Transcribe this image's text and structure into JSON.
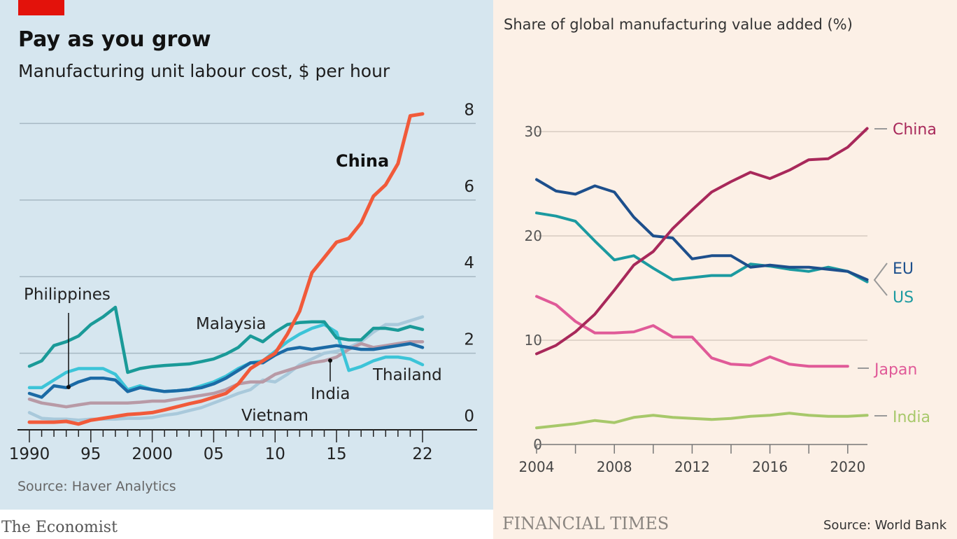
{
  "chart_data": [
    {
      "type": "line",
      "publisher": "The Economist",
      "title": "Pay as you grow",
      "subtitle": "Manufacturing unit labour cost, $ per hour",
      "source": "Source: Haver Analytics",
      "xlabel": "",
      "ylabel": "",
      "xlim": [
        1990,
        2022
      ],
      "ylim": [
        0,
        8
      ],
      "y_ticks": [
        "0",
        "2",
        "4",
        "6",
        "8"
      ],
      "x_tick_labels": [
        {
          "year": 1990,
          "label": "1990"
        },
        {
          "year": 1995,
          "label": "95"
        },
        {
          "year": 2000,
          "label": "2000"
        },
        {
          "year": 2005,
          "label": "05"
        },
        {
          "year": 2010,
          "label": "10"
        },
        {
          "year": 2015,
          "label": "15"
        },
        {
          "year": 2022,
          "label": "22"
        }
      ],
      "grid": true,
      "background": "#d6e6ef",
      "accent": "#e3120b",
      "x": [
        1990,
        1991,
        1992,
        1993,
        1994,
        1995,
        1996,
        1997,
        1998,
        1999,
        2000,
        2001,
        2002,
        2003,
        2004,
        2005,
        2006,
        2007,
        2008,
        2009,
        2010,
        2011,
        2012,
        2013,
        2014,
        2015,
        2016,
        2017,
        2018,
        2019,
        2020,
        2021,
        2022
      ],
      "series": [
        {
          "name": "Vietnam",
          "color": "#a9c9db",
          "values": [
            0.45,
            0.3,
            0.28,
            0.28,
            0.25,
            0.28,
            0.28,
            0.28,
            0.3,
            0.3,
            0.32,
            0.38,
            0.42,
            0.5,
            0.58,
            0.7,
            0.82,
            0.95,
            1.05,
            1.3,
            1.25,
            1.45,
            1.7,
            1.85,
            2.0,
            2.05,
            2.15,
            2.3,
            2.55,
            2.75,
            2.75,
            2.85,
            2.95
          ]
        },
        {
          "name": "India",
          "color": "#b89aa6",
          "values": [
            0.8,
            0.7,
            0.65,
            0.6,
            0.65,
            0.7,
            0.7,
            0.7,
            0.7,
            0.72,
            0.75,
            0.75,
            0.8,
            0.85,
            0.9,
            0.95,
            1.05,
            1.2,
            1.25,
            1.25,
            1.45,
            1.55,
            1.65,
            1.75,
            1.8,
            1.9,
            2.1,
            2.25,
            2.15,
            2.2,
            2.25,
            2.3,
            2.3
          ]
        },
        {
          "name": "Thailand",
          "color": "#3cc4d8",
          "values": [
            1.1,
            1.1,
            1.3,
            1.5,
            1.6,
            1.6,
            1.6,
            1.45,
            1.05,
            1.15,
            1.05,
            1.0,
            1.02,
            1.05,
            1.15,
            1.25,
            1.4,
            1.6,
            1.75,
            1.8,
            2.05,
            2.3,
            2.5,
            2.65,
            2.75,
            2.55,
            1.55,
            1.65,
            1.8,
            1.9,
            1.9,
            1.85,
            1.7
          ]
        },
        {
          "name": "Philippines",
          "color": "#1b6aa5",
          "values": [
            0.95,
            0.85,
            1.15,
            1.1,
            1.25,
            1.35,
            1.35,
            1.3,
            1.0,
            1.1,
            1.05,
            1.0,
            1.02,
            1.05,
            1.1,
            1.2,
            1.35,
            1.55,
            1.75,
            1.75,
            1.95,
            2.1,
            2.15,
            2.1,
            2.15,
            2.2,
            2.15,
            2.1,
            2.1,
            2.15,
            2.2,
            2.25,
            2.15
          ]
        },
        {
          "name": "Malaysia",
          "color": "#1a9a98",
          "values": [
            1.66,
            1.8,
            2.2,
            2.3,
            2.45,
            2.75,
            2.95,
            3.2,
            1.5,
            1.6,
            1.65,
            1.68,
            1.7,
            1.72,
            1.78,
            1.85,
            1.98,
            2.15,
            2.45,
            2.3,
            2.55,
            2.75,
            2.8,
            2.82,
            2.82,
            2.4,
            2.35,
            2.35,
            2.65,
            2.65,
            2.6,
            2.7,
            2.62
          ]
        },
        {
          "name": "China",
          "color": "#f15a3a",
          "values": [
            0.2,
            0.2,
            0.2,
            0.22,
            0.15,
            0.25,
            0.3,
            0.35,
            0.4,
            0.42,
            0.45,
            0.52,
            0.6,
            0.68,
            0.75,
            0.85,
            0.95,
            1.2,
            1.6,
            1.8,
            2.0,
            2.5,
            3.1,
            4.1,
            4.5,
            4.9,
            5.0,
            5.4,
            6.1,
            6.4,
            6.95,
            8.2,
            8.25
          ]
        }
      ]
    },
    {
      "type": "line",
      "publisher": "FINANCIAL TIMES",
      "title": "Share of global manufacturing value added (%)",
      "source": "Source: World Bank",
      "xlabel": "",
      "ylabel": "",
      "xlim": [
        2004,
        2021
      ],
      "ylim": [
        0,
        30
      ],
      "y_ticks": [
        "0",
        "10",
        "20",
        "30"
      ],
      "x_tick_labels": [
        "2004",
        "2008",
        "2012",
        "2016",
        "2020"
      ],
      "grid": true,
      "background": "#fcf0e6",
      "x": [
        2004,
        2005,
        2006,
        2007,
        2008,
        2009,
        2010,
        2011,
        2012,
        2013,
        2014,
        2015,
        2016,
        2017,
        2018,
        2019,
        2020,
        2021
      ],
      "series": [
        {
          "name": "India",
          "color": "#a7c86a",
          "values": [
            1.6,
            1.8,
            2.0,
            2.3,
            2.1,
            2.6,
            2.8,
            2.6,
            2.5,
            2.4,
            2.5,
            2.7,
            2.8,
            3.0,
            2.8,
            2.7,
            2.7,
            2.8
          ]
        },
        {
          "name": "Japan",
          "color": "#e05a98",
          "values": [
            14.2,
            13.4,
            11.8,
            10.7,
            10.7,
            10.8,
            11.4,
            10.3,
            10.3,
            8.3,
            7.7,
            7.6,
            8.4,
            7.7,
            7.5,
            7.5,
            7.5,
            null
          ]
        },
        {
          "name": "US",
          "color": "#1b9aa0",
          "values": [
            22.2,
            21.9,
            21.4,
            19.5,
            17.7,
            18.1,
            16.9,
            15.8,
            16.0,
            16.2,
            16.2,
            17.3,
            17.1,
            16.8,
            16.6,
            17.0,
            16.6,
            15.6
          ]
        },
        {
          "name": "EU",
          "color": "#1d4f8c",
          "values": [
            25.4,
            24.3,
            24.0,
            24.8,
            24.2,
            21.8,
            20.0,
            19.8,
            17.8,
            18.1,
            18.1,
            17.0,
            17.2,
            17.0,
            17.0,
            16.8,
            16.6,
            15.8
          ]
        },
        {
          "name": "China",
          "color": "#a8285a",
          "values": [
            8.7,
            9.5,
            10.8,
            12.5,
            14.8,
            17.2,
            18.5,
            20.7,
            22.5,
            24.2,
            25.2,
            26.1,
            25.5,
            26.3,
            27.3,
            27.4,
            28.5,
            30.3
          ]
        }
      ]
    }
  ]
}
